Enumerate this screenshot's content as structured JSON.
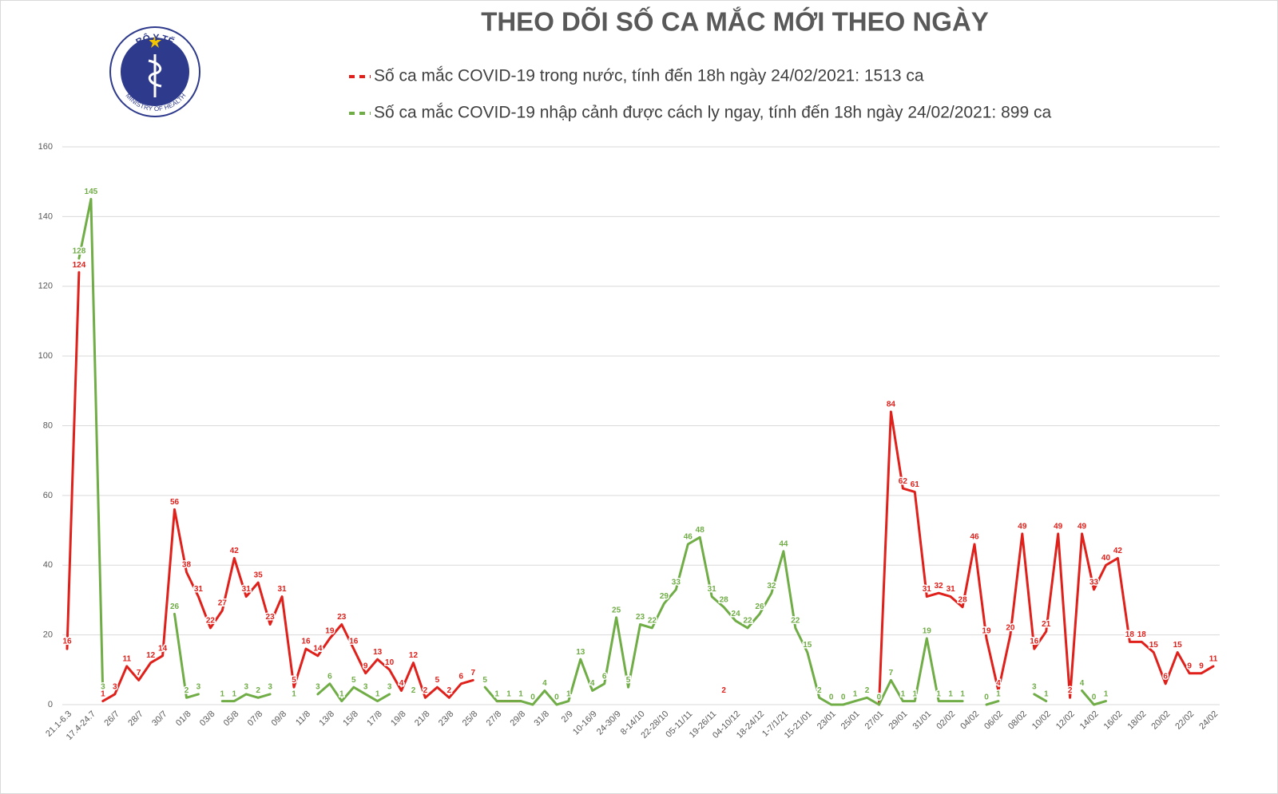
{
  "logo": {
    "top": "BỘ Y TẾ",
    "bottom": "MINISTRY OF HEALTH"
  },
  "chart_data": {
    "type": "line",
    "title": "THEO DÕI SỐ CA MẮC MỚI THEO NGÀY",
    "categories": [
      "21.1-6.3",
      null,
      "17.4-24.7",
      null,
      "26/7",
      null,
      "28/7",
      null,
      "30/7",
      null,
      "01/8",
      null,
      "03/8",
      null,
      "05/8",
      null,
      "07/8",
      null,
      "09/8",
      null,
      "11/8",
      null,
      "13/8",
      null,
      "15/8",
      null,
      "17/8",
      null,
      "19/8",
      null,
      "21/8",
      null,
      "23/8",
      null,
      "25/8",
      null,
      "27/8",
      null,
      "29/8",
      null,
      "31/8",
      null,
      "2/9",
      null,
      "10-16/9",
      null,
      "24-30/9",
      null,
      "8-14/10",
      null,
      "22-28/10",
      null,
      "05-11/11",
      null,
      "19-26/11",
      null,
      "04-10/12",
      null,
      "18-24/12",
      null,
      "1-7/1/21",
      null,
      "15-21/01",
      null,
      "23/01",
      null,
      "25/01",
      null,
      "27/01",
      null,
      "29/01",
      null,
      "31/01",
      null,
      "02/02",
      null,
      "04/02",
      null,
      "06/02",
      null,
      "08/02",
      null,
      "10/02",
      null,
      "12/02",
      null,
      "14/02",
      null,
      "16/02",
      null,
      "18/02",
      null,
      "20/02",
      null,
      "22/02",
      null,
      "24/02"
    ],
    "series": [
      {
        "name": "Số ca mắc COVID-19 trong nước, tính đến 18h ngày 24/02/2021: 1513 ca",
        "color": "#e0201b",
        "values": [
          16,
          124,
          null,
          1,
          3,
          11,
          7,
          12,
          14,
          56,
          38,
          31,
          22,
          27,
          42,
          31,
          35,
          23,
          31,
          5,
          16,
          14,
          19,
          23,
          16,
          9,
          13,
          10,
          4,
          12,
          2,
          5,
          2,
          6,
          7,
          null,
          1,
          1,
          1,
          null,
          null,
          null,
          1,
          null,
          null,
          null,
          null,
          null,
          null,
          null,
          null,
          null,
          null,
          null,
          null,
          2,
          null,
          null,
          null,
          null,
          null,
          null,
          null,
          null,
          null,
          null,
          null,
          null,
          0,
          84,
          62,
          61,
          31,
          32,
          31,
          28,
          46,
          19,
          4,
          20,
          49,
          16,
          21,
          49,
          2,
          49,
          33,
          40,
          42,
          18,
          18,
          15,
          6,
          15,
          9,
          9,
          11
        ]
      },
      {
        "name": "Số ca mắc COVID-19 nhập cảnh được cách ly ngay, tính đến 18h ngày 24/02/2021: 899 ca",
        "color": "#70ad47",
        "values": [
          null,
          128,
          145,
          3,
          null,
          null,
          null,
          null,
          null,
          26,
          2,
          3,
          null,
          1,
          1,
          3,
          2,
          3,
          null,
          1,
          null,
          3,
          6,
          1,
          5,
          3,
          1,
          3,
          null,
          2,
          null,
          null,
          null,
          null,
          null,
          5,
          1,
          1,
          1,
          0,
          4,
          0,
          1,
          13,
          4,
          6,
          25,
          5,
          23,
          22,
          29,
          33,
          46,
          48,
          31,
          28,
          24,
          22,
          26,
          32,
          44,
          22,
          15,
          2,
          0,
          0,
          1,
          2,
          0,
          7,
          1,
          1,
          19,
          1,
          1,
          1,
          null,
          0,
          1,
          null,
          null,
          3,
          1,
          null,
          null,
          4,
          0,
          1,
          null,
          null,
          null,
          null,
          null,
          null,
          null,
          null,
          null
        ]
      }
    ],
    "ylim": [
      0,
      160
    ],
    "yticks": [
      0,
      20,
      40,
      60,
      80,
      100,
      120,
      140,
      160
    ],
    "grid": true
  }
}
